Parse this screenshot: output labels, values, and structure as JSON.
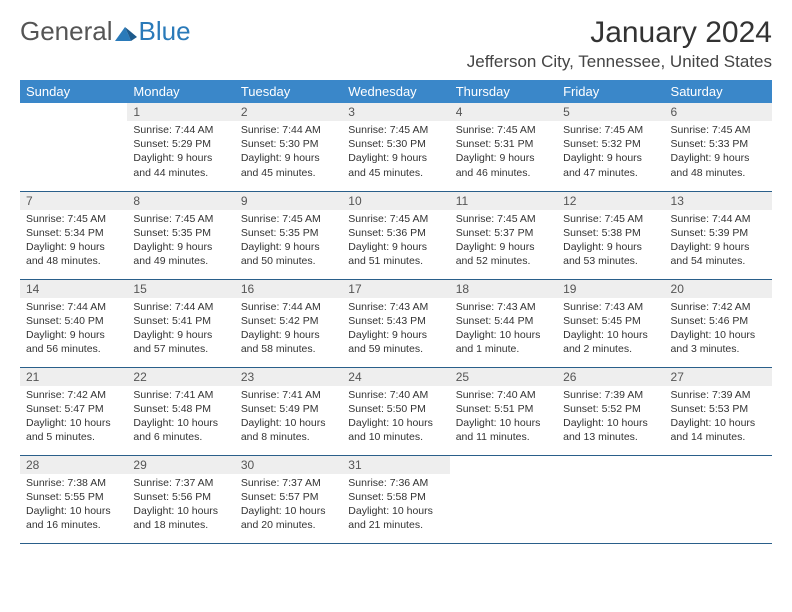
{
  "logo": {
    "word1": "General",
    "word2": "Blue"
  },
  "title": "January 2024",
  "location": "Jefferson City, Tennessee, United States",
  "weekdays": [
    "Sunday",
    "Monday",
    "Tuesday",
    "Wednesday",
    "Thursday",
    "Friday",
    "Saturday"
  ],
  "colors": {
    "header_bg": "#3a87c9",
    "header_text": "#ffffff",
    "daynum_bg": "#eeeeee",
    "row_border": "#2a5f8a"
  },
  "weeks": [
    [
      {
        "num": "",
        "lines": [
          "",
          "",
          "",
          ""
        ]
      },
      {
        "num": "1",
        "lines": [
          "Sunrise: 7:44 AM",
          "Sunset: 5:29 PM",
          "Daylight: 9 hours",
          "and 44 minutes."
        ]
      },
      {
        "num": "2",
        "lines": [
          "Sunrise: 7:44 AM",
          "Sunset: 5:30 PM",
          "Daylight: 9 hours",
          "and 45 minutes."
        ]
      },
      {
        "num": "3",
        "lines": [
          "Sunrise: 7:45 AM",
          "Sunset: 5:30 PM",
          "Daylight: 9 hours",
          "and 45 minutes."
        ]
      },
      {
        "num": "4",
        "lines": [
          "Sunrise: 7:45 AM",
          "Sunset: 5:31 PM",
          "Daylight: 9 hours",
          "and 46 minutes."
        ]
      },
      {
        "num": "5",
        "lines": [
          "Sunrise: 7:45 AM",
          "Sunset: 5:32 PM",
          "Daylight: 9 hours",
          "and 47 minutes."
        ]
      },
      {
        "num": "6",
        "lines": [
          "Sunrise: 7:45 AM",
          "Sunset: 5:33 PM",
          "Daylight: 9 hours",
          "and 48 minutes."
        ]
      }
    ],
    [
      {
        "num": "7",
        "lines": [
          "Sunrise: 7:45 AM",
          "Sunset: 5:34 PM",
          "Daylight: 9 hours",
          "and 48 minutes."
        ]
      },
      {
        "num": "8",
        "lines": [
          "Sunrise: 7:45 AM",
          "Sunset: 5:35 PM",
          "Daylight: 9 hours",
          "and 49 minutes."
        ]
      },
      {
        "num": "9",
        "lines": [
          "Sunrise: 7:45 AM",
          "Sunset: 5:35 PM",
          "Daylight: 9 hours",
          "and 50 minutes."
        ]
      },
      {
        "num": "10",
        "lines": [
          "Sunrise: 7:45 AM",
          "Sunset: 5:36 PM",
          "Daylight: 9 hours",
          "and 51 minutes."
        ]
      },
      {
        "num": "11",
        "lines": [
          "Sunrise: 7:45 AM",
          "Sunset: 5:37 PM",
          "Daylight: 9 hours",
          "and 52 minutes."
        ]
      },
      {
        "num": "12",
        "lines": [
          "Sunrise: 7:45 AM",
          "Sunset: 5:38 PM",
          "Daylight: 9 hours",
          "and 53 minutes."
        ]
      },
      {
        "num": "13",
        "lines": [
          "Sunrise: 7:44 AM",
          "Sunset: 5:39 PM",
          "Daylight: 9 hours",
          "and 54 minutes."
        ]
      }
    ],
    [
      {
        "num": "14",
        "lines": [
          "Sunrise: 7:44 AM",
          "Sunset: 5:40 PM",
          "Daylight: 9 hours",
          "and 56 minutes."
        ]
      },
      {
        "num": "15",
        "lines": [
          "Sunrise: 7:44 AM",
          "Sunset: 5:41 PM",
          "Daylight: 9 hours",
          "and 57 minutes."
        ]
      },
      {
        "num": "16",
        "lines": [
          "Sunrise: 7:44 AM",
          "Sunset: 5:42 PM",
          "Daylight: 9 hours",
          "and 58 minutes."
        ]
      },
      {
        "num": "17",
        "lines": [
          "Sunrise: 7:43 AM",
          "Sunset: 5:43 PM",
          "Daylight: 9 hours",
          "and 59 minutes."
        ]
      },
      {
        "num": "18",
        "lines": [
          "Sunrise: 7:43 AM",
          "Sunset: 5:44 PM",
          "Daylight: 10 hours",
          "and 1 minute."
        ]
      },
      {
        "num": "19",
        "lines": [
          "Sunrise: 7:43 AM",
          "Sunset: 5:45 PM",
          "Daylight: 10 hours",
          "and 2 minutes."
        ]
      },
      {
        "num": "20",
        "lines": [
          "Sunrise: 7:42 AM",
          "Sunset: 5:46 PM",
          "Daylight: 10 hours",
          "and 3 minutes."
        ]
      }
    ],
    [
      {
        "num": "21",
        "lines": [
          "Sunrise: 7:42 AM",
          "Sunset: 5:47 PM",
          "Daylight: 10 hours",
          "and 5 minutes."
        ]
      },
      {
        "num": "22",
        "lines": [
          "Sunrise: 7:41 AM",
          "Sunset: 5:48 PM",
          "Daylight: 10 hours",
          "and 6 minutes."
        ]
      },
      {
        "num": "23",
        "lines": [
          "Sunrise: 7:41 AM",
          "Sunset: 5:49 PM",
          "Daylight: 10 hours",
          "and 8 minutes."
        ]
      },
      {
        "num": "24",
        "lines": [
          "Sunrise: 7:40 AM",
          "Sunset: 5:50 PM",
          "Daylight: 10 hours",
          "and 10 minutes."
        ]
      },
      {
        "num": "25",
        "lines": [
          "Sunrise: 7:40 AM",
          "Sunset: 5:51 PM",
          "Daylight: 10 hours",
          "and 11 minutes."
        ]
      },
      {
        "num": "26",
        "lines": [
          "Sunrise: 7:39 AM",
          "Sunset: 5:52 PM",
          "Daylight: 10 hours",
          "and 13 minutes."
        ]
      },
      {
        "num": "27",
        "lines": [
          "Sunrise: 7:39 AM",
          "Sunset: 5:53 PM",
          "Daylight: 10 hours",
          "and 14 minutes."
        ]
      }
    ],
    [
      {
        "num": "28",
        "lines": [
          "Sunrise: 7:38 AM",
          "Sunset: 5:55 PM",
          "Daylight: 10 hours",
          "and 16 minutes."
        ]
      },
      {
        "num": "29",
        "lines": [
          "Sunrise: 7:37 AM",
          "Sunset: 5:56 PM",
          "Daylight: 10 hours",
          "and 18 minutes."
        ]
      },
      {
        "num": "30",
        "lines": [
          "Sunrise: 7:37 AM",
          "Sunset: 5:57 PM",
          "Daylight: 10 hours",
          "and 20 minutes."
        ]
      },
      {
        "num": "31",
        "lines": [
          "Sunrise: 7:36 AM",
          "Sunset: 5:58 PM",
          "Daylight: 10 hours",
          "and 21 minutes."
        ]
      },
      {
        "num": "",
        "lines": [
          "",
          "",
          "",
          ""
        ]
      },
      {
        "num": "",
        "lines": [
          "",
          "",
          "",
          ""
        ]
      },
      {
        "num": "",
        "lines": [
          "",
          "",
          "",
          ""
        ]
      }
    ]
  ]
}
